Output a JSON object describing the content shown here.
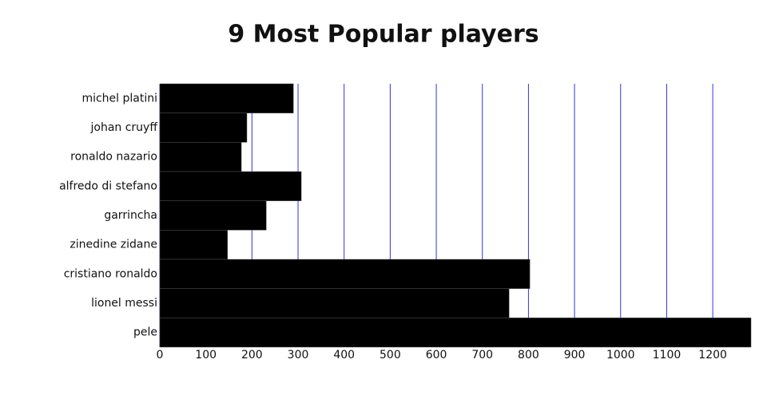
{
  "chart_data": {
    "type": "bar",
    "orientation": "horizontal",
    "title": "9 Most Popular players",
    "categories": [
      "michel platini",
      "johan cruyff",
      "ronaldo nazario",
      "alfredo di stefano",
      "garrincha",
      "zinedine zidane",
      "cristiano ronaldo",
      "lionel messi",
      "pele"
    ],
    "values": [
      290,
      189,
      177,
      307,
      231,
      147,
      803,
      758,
      1283
    ],
    "color": "#000000",
    "grid_color": "#3333dd",
    "xlim": [
      0,
      1283
    ],
    "xticks": [
      0,
      100,
      200,
      300,
      400,
      500,
      600,
      700,
      800,
      900,
      1000,
      1100,
      1200
    ],
    "grid": true
  }
}
